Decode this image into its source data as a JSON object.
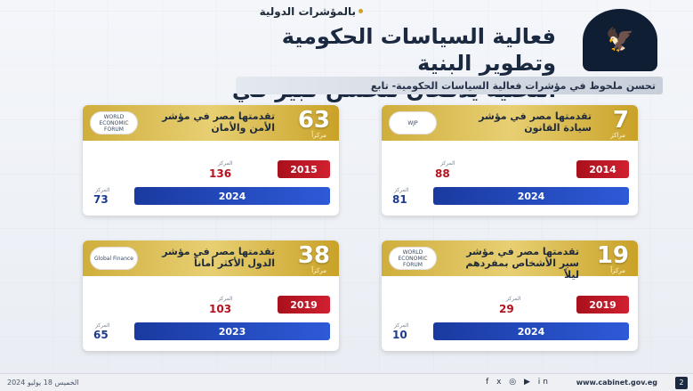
{
  "header": {
    "kicker": "بالمؤشرات الدولية",
    "headline_line1": "فعالية السياسات الحكومية وتطوير البنية",
    "headline_line2": "التحتية يدفعان لتحسن كبير في مناخ الاستثمار",
    "subtitle": "تحسن ملحوظ في مؤشرات فعالية السياسات الحكومية- تابع",
    "logo_icon": "eagle-icon"
  },
  "cards": [
    {
      "rank": "7",
      "rank_unit": "مراكز",
      "title": "تقدمتها مصر في مؤشر سيادة القانون",
      "org": "WJP",
      "old": {
        "year": "2014",
        "value": "88",
        "value_label": "المركز"
      },
      "new": {
        "year": "2024",
        "value": "81",
        "value_label": "المركز"
      },
      "progress_old": 0.22,
      "progress_new": 0.82
    },
    {
      "rank": "63",
      "rank_unit": "مركزاً",
      "title": "تقدمتها مصر في مؤشر الأمن والأمان",
      "org": "WORLD ECONOMIC FORUM",
      "old": {
        "year": "2015",
        "value": "136",
        "value_label": "المركز"
      },
      "new": {
        "year": "2024",
        "value": "73",
        "value_label": "المركز"
      },
      "progress_old": 0.22,
      "progress_new": 0.82
    },
    {
      "rank": "19",
      "rank_unit": "مركزاً",
      "title": "تقدمتها مصر في مؤشر سير الأشخاص بمفردهم ليلاً",
      "org": "WORLD ECONOMIC FORUM",
      "old": {
        "year": "2019",
        "value": "29",
        "value_label": "المركز"
      },
      "new": {
        "year": "2024",
        "value": "10",
        "value_label": "المركز"
      },
      "progress_old": 0.22,
      "progress_new": 0.82
    },
    {
      "rank": "38",
      "rank_unit": "مركزاً",
      "title": "تقدمتها مصر في مؤشر الدول الأكثر أماناً",
      "org": "Global Finance",
      "old": {
        "year": "2019",
        "value": "103",
        "value_label": "المركز"
      },
      "new": {
        "year": "2023",
        "value": "65",
        "value_label": "المركز"
      },
      "progress_old": 0.22,
      "progress_new": 0.82
    }
  ],
  "footer": {
    "date": "الخميس 18 يوليو 2024",
    "site": "www.cabinet.gov.eg",
    "social": "f  x  ◎  ▶  in",
    "page": "2"
  }
}
